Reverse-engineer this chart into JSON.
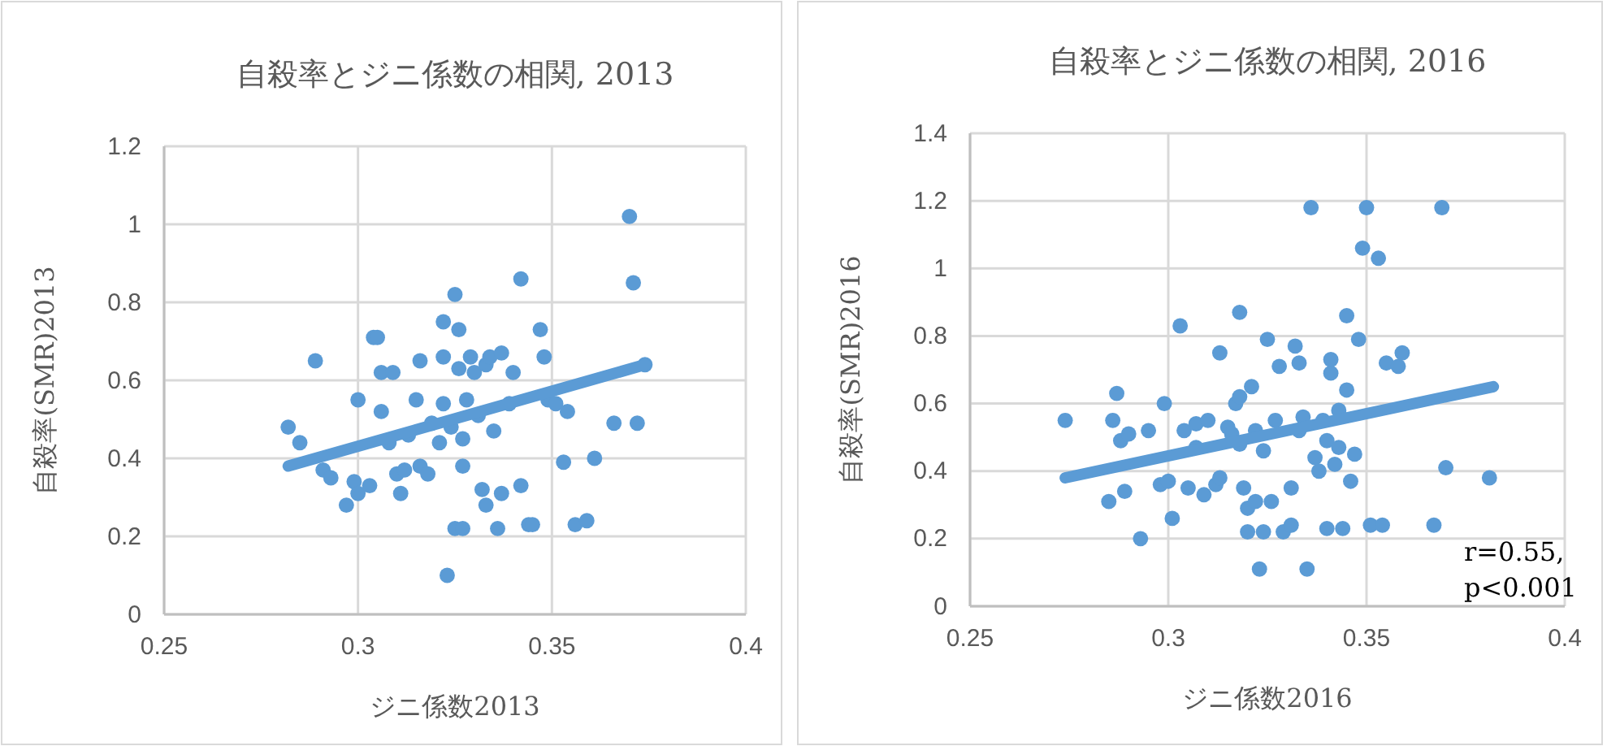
{
  "chart_data": [
    {
      "type": "scatter",
      "title": "自殺率とジニ係数の相関, 2013",
      "xlabel": "ジニ係数2013",
      "ylabel": "自殺率(SMR)2013",
      "xlim": [
        0.25,
        0.4
      ],
      "xticks": [
        0.25,
        0.3,
        0.35,
        0.4
      ],
      "ylim": [
        0,
        1.2
      ],
      "yticks": [
        0,
        0.2,
        0.4,
        0.6,
        0.8,
        1,
        1.2
      ],
      "grid": true,
      "series": [
        {
          "marker": "circle",
          "color": "#5b9bd5",
          "x": [
            0.282,
            0.285,
            0.289,
            0.291,
            0.293,
            0.297,
            0.299,
            0.3,
            0.3,
            0.303,
            0.304,
            0.305,
            0.306,
            0.306,
            0.308,
            0.309,
            0.31,
            0.311,
            0.312,
            0.313,
            0.315,
            0.316,
            0.318,
            0.316,
            0.319,
            0.321,
            0.322,
            0.322,
            0.322,
            0.323,
            0.324,
            0.325,
            0.326,
            0.325,
            0.327,
            0.326,
            0.327,
            0.327,
            0.328,
            0.329,
            0.33,
            0.331,
            0.332,
            0.333,
            0.333,
            0.334,
            0.335,
            0.336,
            0.337,
            0.337,
            0.339,
            0.34,
            0.342,
            0.342,
            0.344,
            0.345,
            0.347,
            0.348,
            0.349,
            0.351,
            0.353,
            0.354,
            0.356,
            0.359,
            0.361,
            0.366,
            0.37,
            0.371,
            0.372,
            0.374
          ],
          "values": [
            0.48,
            0.44,
            0.65,
            0.37,
            0.35,
            0.28,
            0.34,
            0.31,
            0.55,
            0.33,
            0.71,
            0.71,
            0.62,
            0.52,
            0.44,
            0.62,
            0.36,
            0.31,
            0.37,
            0.46,
            0.55,
            0.38,
            0.36,
            0.65,
            0.49,
            0.44,
            0.75,
            0.66,
            0.54,
            0.1,
            0.48,
            0.82,
            0.73,
            0.22,
            0.22,
            0.63,
            0.45,
            0.38,
            0.55,
            0.66,
            0.62,
            0.51,
            0.32,
            0.64,
            0.28,
            0.66,
            0.47,
            0.22,
            0.67,
            0.31,
            0.54,
            0.62,
            0.33,
            0.86,
            0.23,
            0.23,
            0.73,
            0.66,
            0.55,
            0.54,
            0.39,
            0.52,
            0.23,
            0.24,
            0.4,
            0.49,
            1.02,
            0.85,
            0.49,
            0.64
          ]
        },
        {
          "type": "line",
          "marker": "none",
          "color": "#5b9bd5",
          "x": [
            0.282,
            0.374
          ],
          "values": [
            0.38,
            0.64
          ]
        }
      ]
    },
    {
      "type": "scatter",
      "title": "自殺率とジニ係数の相関, 2016",
      "xlabel": "ジニ係数2016",
      "ylabel": "自殺率(SMR)2016",
      "xlim": [
        0.25,
        0.4
      ],
      "xticks": [
        0.25,
        0.3,
        0.35,
        0.4
      ],
      "ylim": [
        0,
        1.4
      ],
      "yticks": [
        0,
        0.2,
        0.4,
        0.6,
        0.8,
        1,
        1.2,
        1.4
      ],
      "grid": true,
      "annotations": [
        "r=0.55,\np<0.001"
      ],
      "series": [
        {
          "marker": "circle",
          "color": "#5b9bd5",
          "x": [
            0.274,
            0.285,
            0.286,
            0.287,
            0.288,
            0.289,
            0.29,
            0.293,
            0.295,
            0.298,
            0.299,
            0.3,
            0.301,
            0.303,
            0.304,
            0.305,
            0.307,
            0.307,
            0.309,
            0.31,
            0.312,
            0.313,
            0.313,
            0.315,
            0.316,
            0.317,
            0.318,
            0.318,
            0.318,
            0.319,
            0.32,
            0.32,
            0.321,
            0.322,
            0.322,
            0.323,
            0.324,
            0.324,
            0.325,
            0.326,
            0.327,
            0.328,
            0.329,
            0.331,
            0.331,
            0.332,
            0.333,
            0.333,
            0.334,
            0.335,
            0.336,
            0.337,
            0.338,
            0.339,
            0.34,
            0.34,
            0.341,
            0.341,
            0.342,
            0.343,
            0.343,
            0.344,
            0.345,
            0.345,
            0.346,
            0.347,
            0.348,
            0.349,
            0.35,
            0.351,
            0.353,
            0.354,
            0.355,
            0.358,
            0.359,
            0.367,
            0.369,
            0.37,
            0.381
          ],
          "values": [
            0.55,
            0.31,
            0.55,
            0.63,
            0.49,
            0.34,
            0.51,
            0.2,
            0.52,
            0.36,
            0.6,
            0.37,
            0.26,
            0.83,
            0.52,
            0.35,
            0.54,
            0.47,
            0.33,
            0.55,
            0.36,
            0.38,
            0.75,
            0.53,
            0.51,
            0.6,
            0.62,
            0.87,
            0.48,
            0.35,
            0.29,
            0.22,
            0.65,
            0.52,
            0.31,
            0.11,
            0.22,
            0.46,
            0.79,
            0.31,
            0.55,
            0.71,
            0.22,
            0.24,
            0.35,
            0.77,
            0.72,
            0.52,
            0.56,
            0.11,
            1.18,
            0.44,
            0.4,
            0.55,
            0.49,
            0.23,
            0.69,
            0.73,
            0.42,
            0.58,
            0.47,
            0.23,
            0.86,
            0.64,
            0.37,
            0.45,
            0.79,
            1.06,
            1.18,
            0.24,
            1.03,
            0.24,
            0.72,
            0.71,
            0.75,
            0.24,
            1.18,
            0.41,
            0.38
          ]
        },
        {
          "type": "line",
          "marker": "none",
          "color": "#5b9bd5",
          "x": [
            0.274,
            0.382
          ],
          "values": [
            0.38,
            0.65
          ]
        }
      ]
    }
  ]
}
